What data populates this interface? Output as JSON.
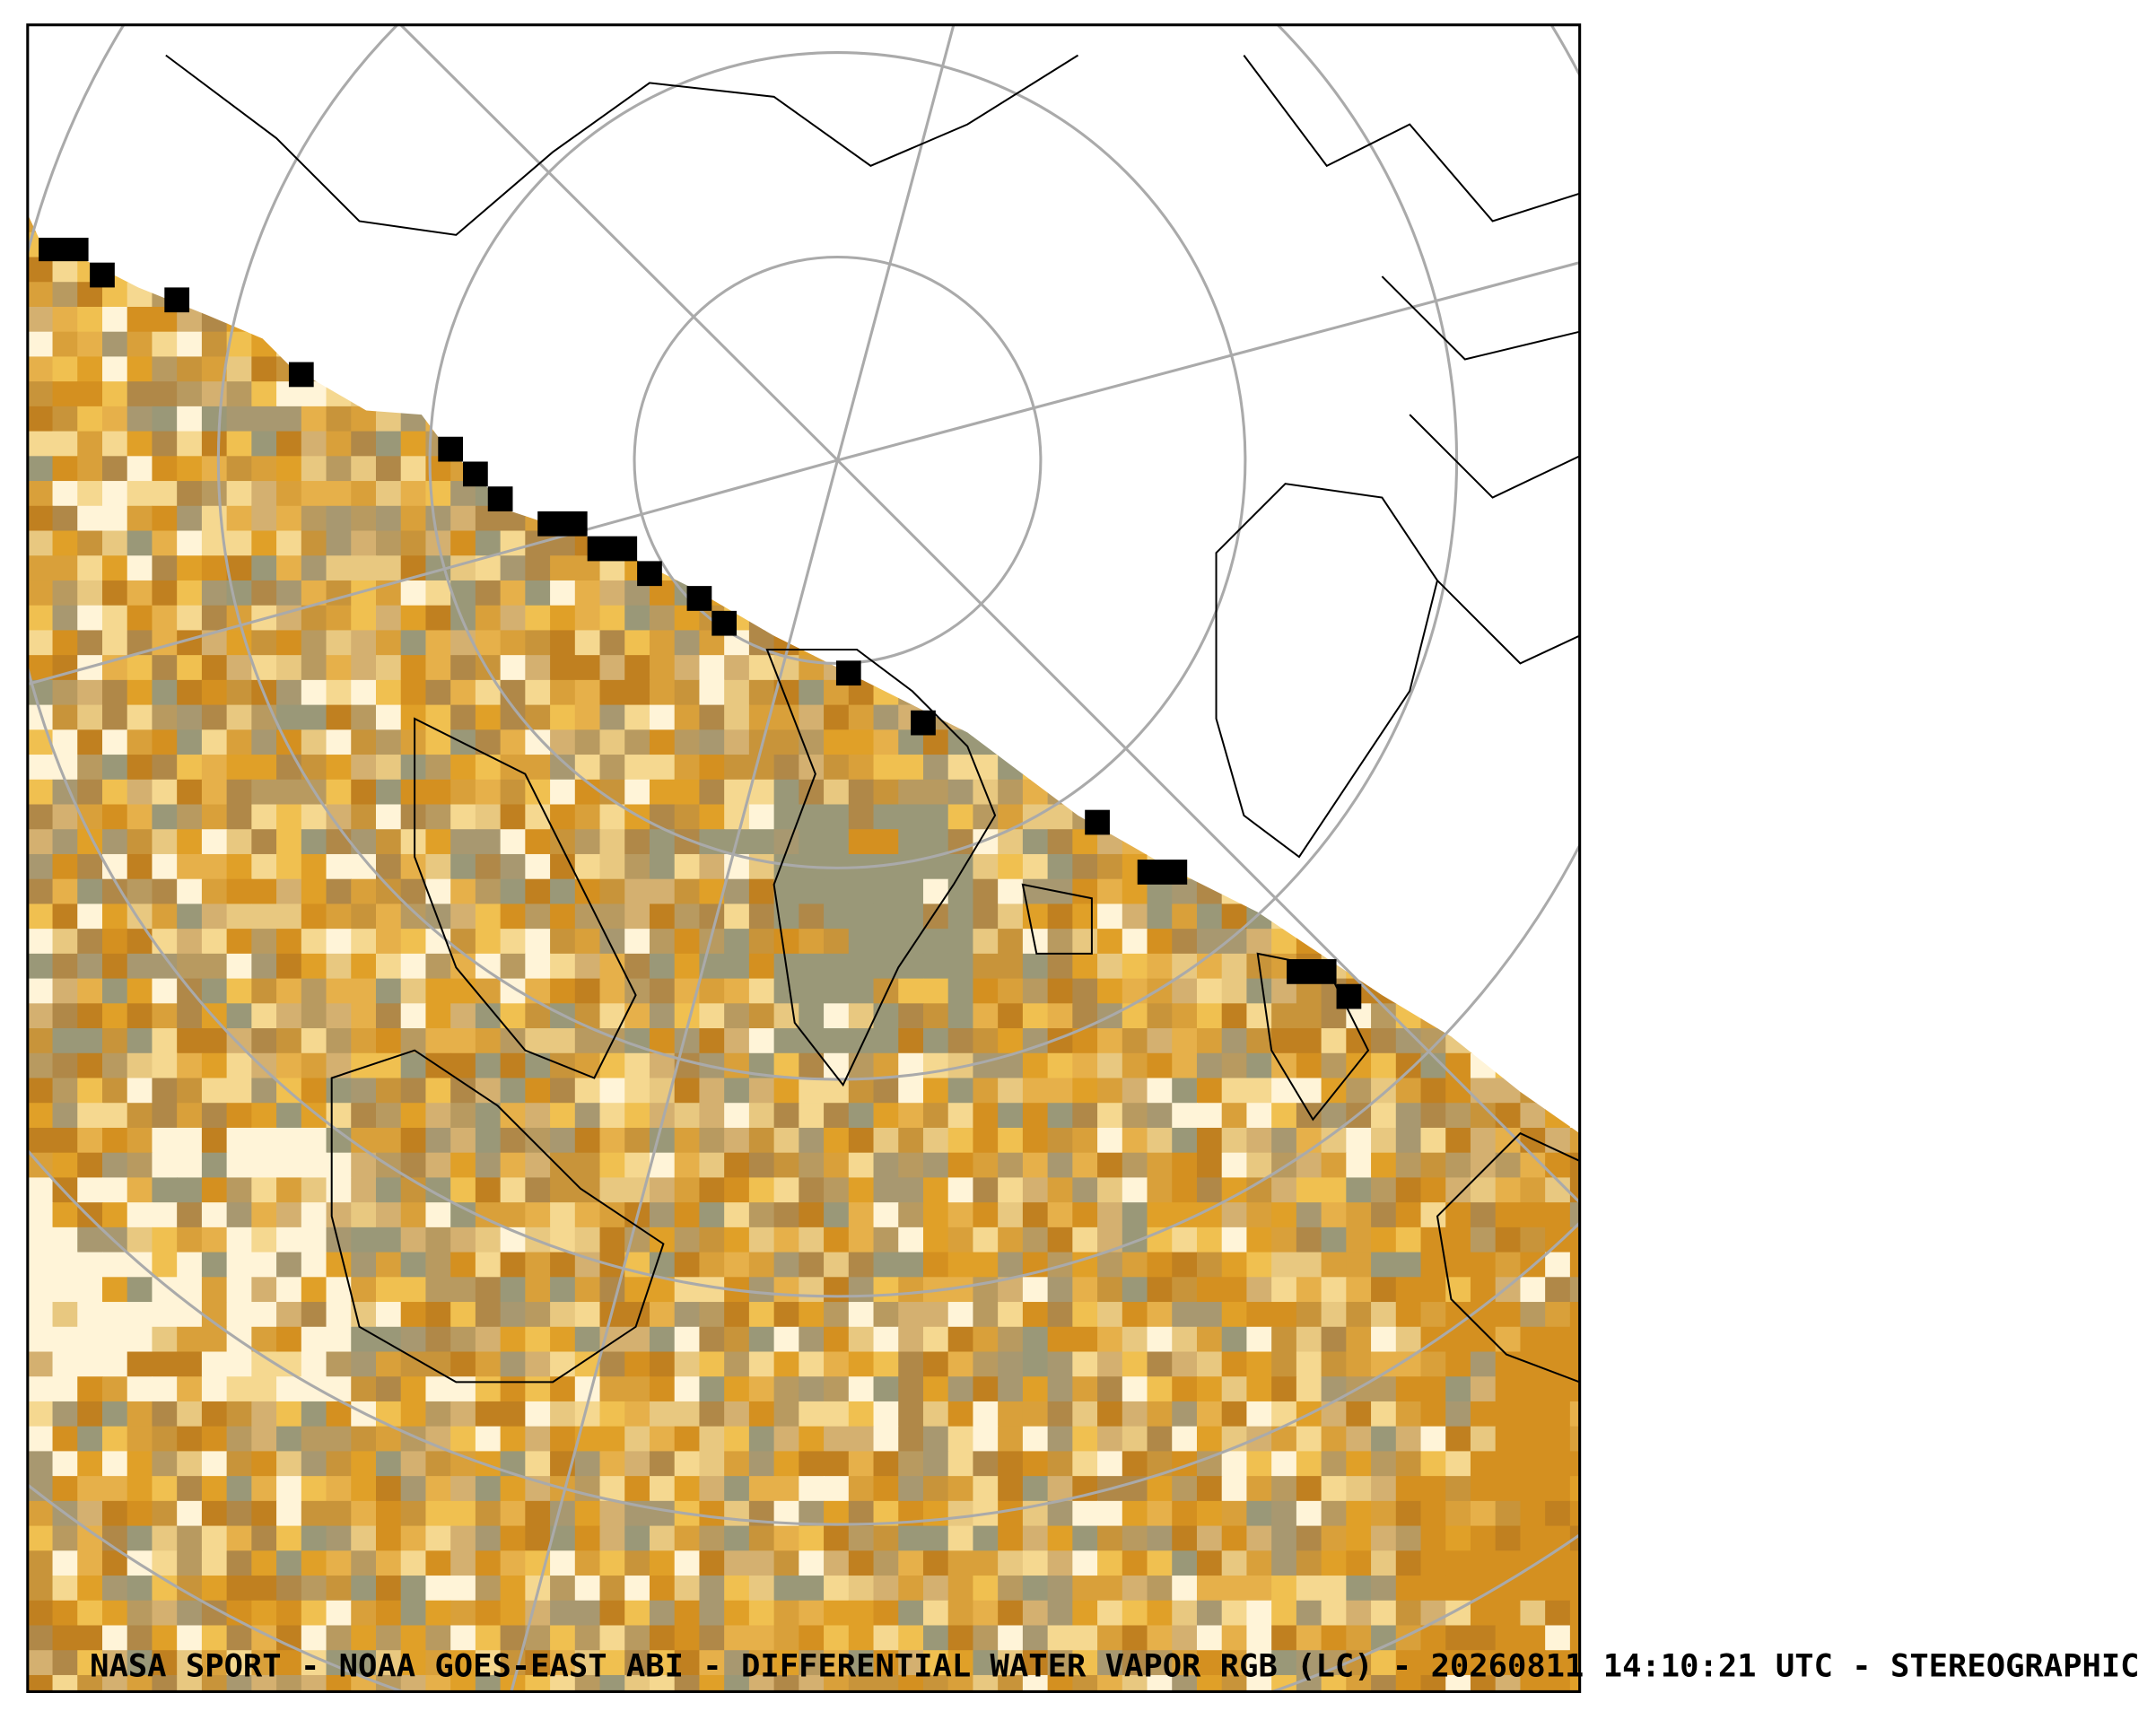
{
  "caption": "NASA SPORT  -  NOAA GOES-EAST ABI  -  DIFFERENTIAL WATER VAPOR RGB (LC)  -  20260811 14:10:21 UTC - STEREOGRAPHIC"
}
